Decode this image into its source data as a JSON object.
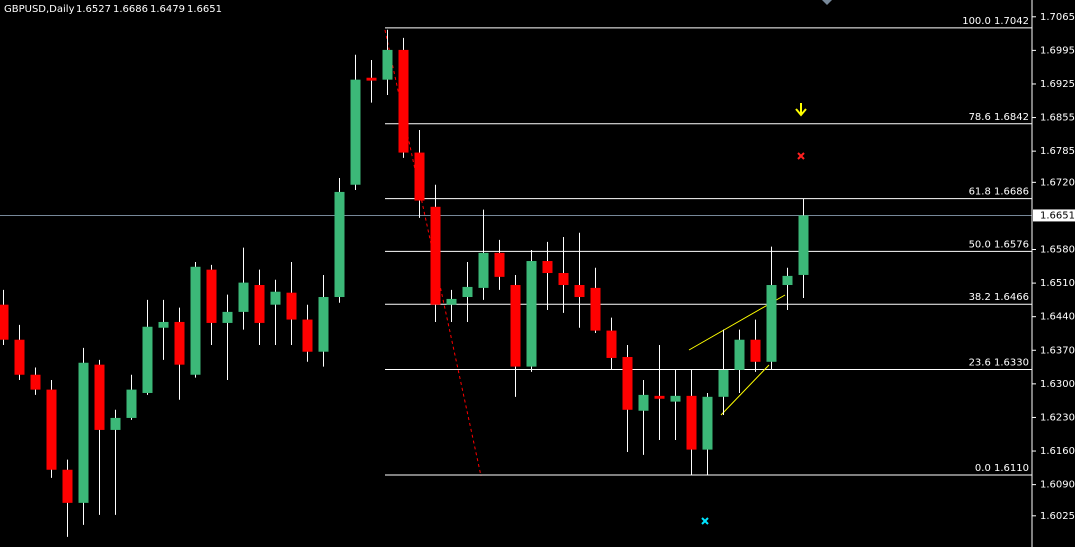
{
  "chart_data": {
    "type": "candlestick",
    "title": "GBPUSD,Daily",
    "open": [
      1.6465,
      1.6392,
      1.6319,
      1.6288,
      1.6121,
      1.6052,
      1.634,
      1.6204,
      1.6229,
      1.6281,
      1.6417,
      1.6429,
      1.6319,
      1.6538,
      1.6427,
      1.645,
      1.6506,
      1.6465,
      1.649,
      1.6434,
      1.6367,
      1.6481,
      1.6715,
      1.6938,
      1.6934,
      1.6996,
      1.6782,
      1.6669,
      1.6465,
      1.6481,
      1.65,
      1.6573,
      1.6506,
      1.6336,
      1.6556,
      1.6531,
      1.6506,
      1.65,
      1.6411,
      1.6356,
      1.6244,
      1.6275,
      1.6263,
      1.6275,
      1.6163,
      1.6273,
      1.6329,
      1.6392,
      1.6346,
      1.6506,
      1.6527
    ],
    "high": [
      1.6496,
      1.6423,
      1.6334,
      1.6308,
      1.6142,
      1.6375,
      1.635,
      1.6246,
      1.6319,
      1.6475,
      1.6475,
      1.6459,
      1.6554,
      1.6548,
      1.6486,
      1.6584,
      1.6538,
      1.6517,
      1.6554,
      1.6465,
      1.6527,
      1.6729,
      1.6986,
      1.6975,
      1.7038,
      1.7021,
      1.6829,
      1.6715,
      1.6496,
      1.6554,
      1.6663,
      1.66,
      1.6527,
      1.6579,
      1.6596,
      1.6606,
      1.6615,
      1.6542,
      1.6438,
      1.6381,
      1.6308,
      1.6381,
      1.6329,
      1.6329,
      1.6281,
      1.6413,
      1.6413,
      1.6434,
      1.6586,
      1.6542,
      1.6686
    ],
    "low": [
      1.6381,
      1.6308,
      1.6277,
      1.6104,
      1.5981,
      1.6006,
      1.6027,
      1.6027,
      1.6225,
      1.6277,
      1.635,
      1.6267,
      1.6313,
      1.6381,
      1.6308,
      1.6413,
      1.6381,
      1.6381,
      1.6381,
      1.6346,
      1.6336,
      1.6469,
      1.6704,
      1.6886,
      1.6902,
      1.6771,
      1.6646,
      1.6429,
      1.6429,
      1.6429,
      1.6475,
      1.6496,
      1.6273,
      1.6325,
      1.6454,
      1.6448,
      1.6417,
      1.6406,
      1.6329,
      1.6158,
      1.6152,
      1.6183,
      1.6183,
      1.6111,
      1.6111,
      1.6235,
      1.6281,
      1.6325,
      1.6329,
      1.6454,
      1.6479
    ],
    "close": [
      1.6392,
      1.6319,
      1.6288,
      1.6121,
      1.6052,
      1.6344,
      1.6204,
      1.6229,
      1.6288,
      1.6419,
      1.6429,
      1.634,
      1.6544,
      1.6427,
      1.645,
      1.6511,
      1.6427,
      1.6492,
      1.6434,
      1.6367,
      1.6481,
      1.67,
      1.6934,
      1.6932,
      1.6996,
      1.6782,
      1.6682,
      1.6465,
      1.6477,
      1.6502,
      1.6573,
      1.6523,
      1.6336,
      1.6556,
      1.6531,
      1.6506,
      1.6481,
      1.6411,
      1.6354,
      1.6246,
      1.6277,
      1.6269,
      1.6275,
      1.6163,
      1.6273,
      1.6329,
      1.6392,
      1.6346,
      1.6506,
      1.6525,
      1.6651
    ],
    "up_color": "#3cb878",
    "down_color": "#ff0000",
    "ylim": [
      1.596,
      1.71
    ],
    "yticks": [
      1.7065,
      1.6995,
      1.6925,
      1.6855,
      1.6785,
      {
        "value": 1.672,
        "label": "1.6720"
      },
      {
        "value": 1.658,
        "label": "1.6580"
      },
      {
        "value": 1.651,
        "label": "1.6510"
      },
      {
        "value": 1.644,
        "label": "1.6440"
      },
      {
        "value": 1.637,
        "label": "1.6370"
      },
      {
        "value": 1.63,
        "label": "1.6300"
      },
      {
        "value": 1.623,
        "label": "1.6230"
      },
      {
        "value": 1.616,
        "label": "1.6160"
      },
      {
        "value": 1.609,
        "label": "1.6090"
      },
      1.6025
    ],
    "fib_levels": [
      {
        "value": 1.7042,
        "label": "100.0 1.7042"
      },
      {
        "value": 1.6842,
        "label": "78.6 1.6842"
      },
      {
        "value": 1.6686,
        "label": "61.8 1.6686"
      },
      {
        "value": 1.6576,
        "label": "50.0 1.6576"
      },
      {
        "value": 1.6466,
        "label": "38.2 1.6466"
      },
      {
        "value": 1.633,
        "label": "23.6 1.6330"
      },
      {
        "value": 1.611,
        "label": "0.0 1.6110"
      }
    ]
  }
}
